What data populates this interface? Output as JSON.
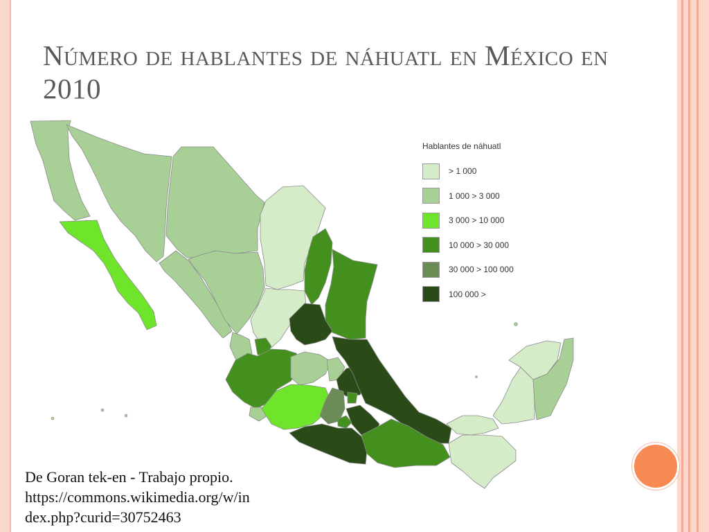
{
  "slide": {
    "title": "Número de hablantes de náhuatl en México en 2010",
    "credit_lines": [
      "De Goran tek-en - Trabajo propio.",
      "https://commons.wikimedia.org/w/in",
      "dex.php?curid=30752463"
    ]
  },
  "legend": {
    "title": "Hablantes de náhuatl",
    "items": [
      {
        "label": "> 1 000",
        "color": "#d5ecc9"
      },
      {
        "label": "1 000 > 3 000",
        "color": "#a8d096"
      },
      {
        "label": "3 000 > 10 000",
        "color": "#6ee52a"
      },
      {
        "label": "10 000 > 30 000",
        "color": "#43901f"
      },
      {
        "label": "30 000 > 100 000",
        "color": "#6b8b57"
      },
      {
        "label": "100 000 >",
        "color": "#2a4a17"
      }
    ]
  },
  "theme": {
    "title_color": "#595959",
    "frame_color": "#fbd8cc",
    "accent_orb": "#f68a52"
  }
}
